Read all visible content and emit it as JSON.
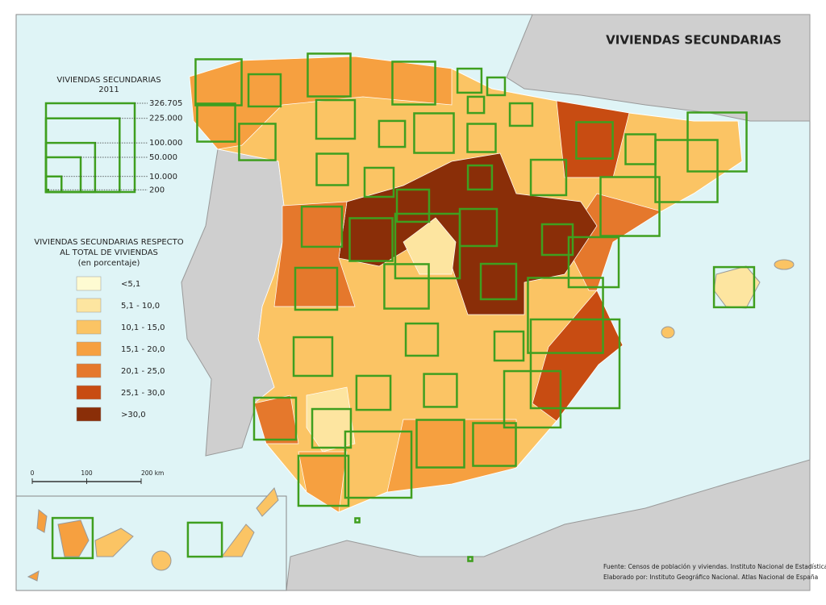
{
  "title": "VIVIENDAS SECUNDARIAS",
  "size_legend": {
    "title": [
      "VIVIENDAS SECUNDARIAS",
      "2011"
    ],
    "items": [
      {
        "value": 326705,
        "label": "326.705"
      },
      {
        "value": 225000,
        "label": "225.000"
      },
      {
        "value": 100000,
        "label": "100.000"
      },
      {
        "value": 50000,
        "label": "50.000"
      },
      {
        "value": 10000,
        "label": "10.000"
      },
      200
    ]
  },
  "color_legend": {
    "title": [
      "VIVIENDAS SECUNDARIAS RESPECTO",
      "AL TOTAL DE VIVIENDAS",
      "(en porcentaje)"
    ],
    "classes": [
      {
        "label": "<5,1",
        "color": "#fefbd2"
      },
      {
        "label": "5,1 - 10,0",
        "color": "#fde5a0"
      },
      {
        "label": "10,1 - 15,0",
        "color": "#fbc464"
      },
      {
        "label": "15,1 - 20,0",
        "color": "#f6a040"
      },
      {
        "label": "20,1 - 25,0",
        "color": "#e5782c"
      },
      {
        "label": "25,1 - 30,0",
        "color": "#c84c12"
      },
      {
        "label": ">30,0",
        "color": "#8a2e08"
      }
    ]
  },
  "scale_bar": {
    "ticks": [
      0,
      100,
      {
        "value": 200,
        "label": "200 km"
      }
    ]
  },
  "symbols": {
    "color": "#3f9f1f",
    "values": [
      88000,
      43000,
      76000,
      76000,
      24000,
      13000,
      11000,
      21000,
      62000,
      60000,
      55000,
      28000,
      65000,
      33000,
      55000,
      37000,
      144000,
      160000,
      41000,
      35000,
      52000,
      24000,
      43000,
      144000,
      67000,
      76000,
      57000,
      173000,
      39000,
      104000,
      82000,
      73000,
      52000,
      234000,
      67000,
      43000,
      35000,
      62000,
      327000,
      48000,
      45000,
      132000,
      73000,
      62000,
      94000,
      76000,
      182000,
      104000,
      67000,
      48000,
      700,
      700
    ]
  },
  "source": [
    "Fuente: Censos de población y viviendas. Instituto Nacional de Estadística",
    "Elaborado por: Instituto Geográfico Nacional. Atlas Nacional de España"
  ]
}
